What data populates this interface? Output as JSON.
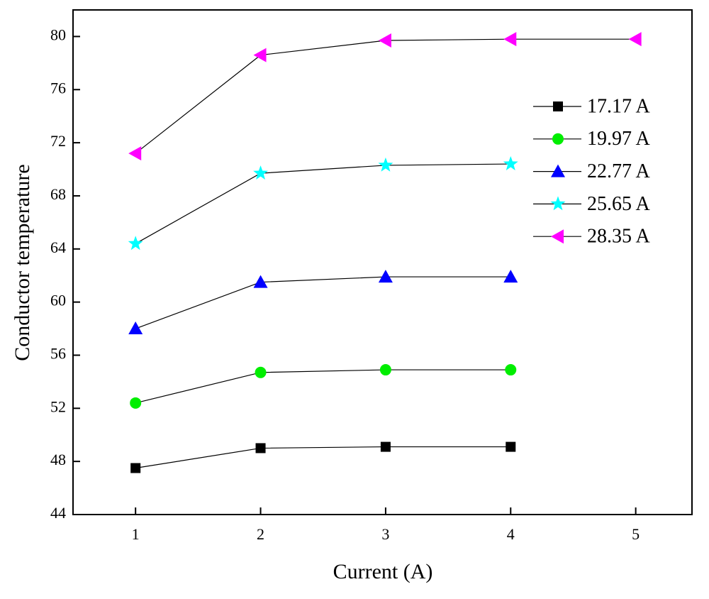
{
  "chart_data": {
    "type": "line",
    "xlabel": "Current (A)",
    "ylabel": "Conductor temperature",
    "x": [
      1,
      2,
      3,
      4,
      5
    ],
    "xlim": [
      0.5,
      5.45
    ],
    "xticks": [
      1,
      2,
      3,
      4,
      5
    ],
    "ylim": [
      44,
      82
    ],
    "yticks": [
      44,
      48,
      52,
      56,
      60,
      64,
      68,
      72,
      76,
      80
    ],
    "legend": "upper-right",
    "series": [
      {
        "name": "17.17 A",
        "color": "#000000",
        "marker": "square",
        "values": [
          47.5,
          49.0,
          49.1,
          49.1,
          null
        ]
      },
      {
        "name": "19.97 A",
        "color": "#00ee00",
        "marker": "circle",
        "values": [
          52.4,
          54.7,
          54.9,
          54.9,
          null
        ]
      },
      {
        "name": "22.77 A",
        "color": "#0000ff",
        "marker": "triangle-up",
        "values": [
          58.0,
          61.5,
          61.9,
          61.9,
          null
        ]
      },
      {
        "name": "25.65 A",
        "color": "#00ffff",
        "marker": "star",
        "values": [
          64.4,
          69.7,
          70.3,
          70.4,
          null
        ]
      },
      {
        "name": "28.35 A",
        "color": "#ff00ff",
        "marker": "triangle-left",
        "values": [
          71.2,
          78.6,
          79.7,
          79.8,
          79.8
        ]
      }
    ]
  }
}
